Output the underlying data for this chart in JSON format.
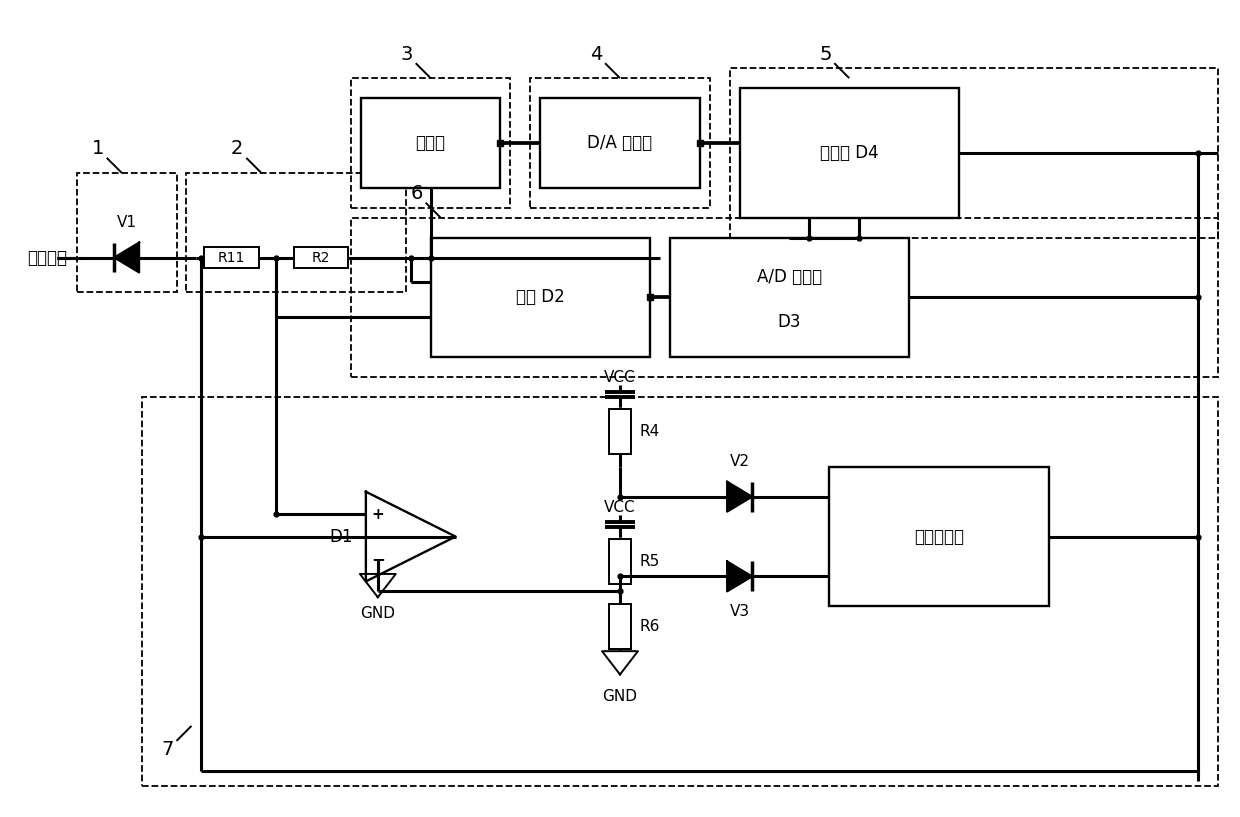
{
  "bg_color": "#ffffff",
  "line_color": "#000000",
  "lw_main": 2.2,
  "lw_thin": 1.4,
  "lw_dash": 1.3,
  "fs_label": 13,
  "fs_text": 12,
  "fs_small": 10,
  "labels": {
    "current_output": "电流输出",
    "current_source": "电流源",
    "da_converter": "D/A 转换器",
    "controller": "控制器 D4",
    "opamp": "运放 D2",
    "ad_converter": "A/D 转换器",
    "d3": "D3",
    "d1": "D1",
    "v1": "V1",
    "v2": "V2",
    "v3": "V3",
    "r11": "R11",
    "r2": "R2",
    "r4": "R4",
    "r5": "R5",
    "r6": "R6",
    "vcc": "VCC",
    "gnd": "GND",
    "watchdog": "看门狗电路",
    "n1": "1",
    "n2": "2",
    "n3": "3",
    "n4": "4",
    "n5": "5",
    "n6": "6",
    "n7": "7"
  }
}
